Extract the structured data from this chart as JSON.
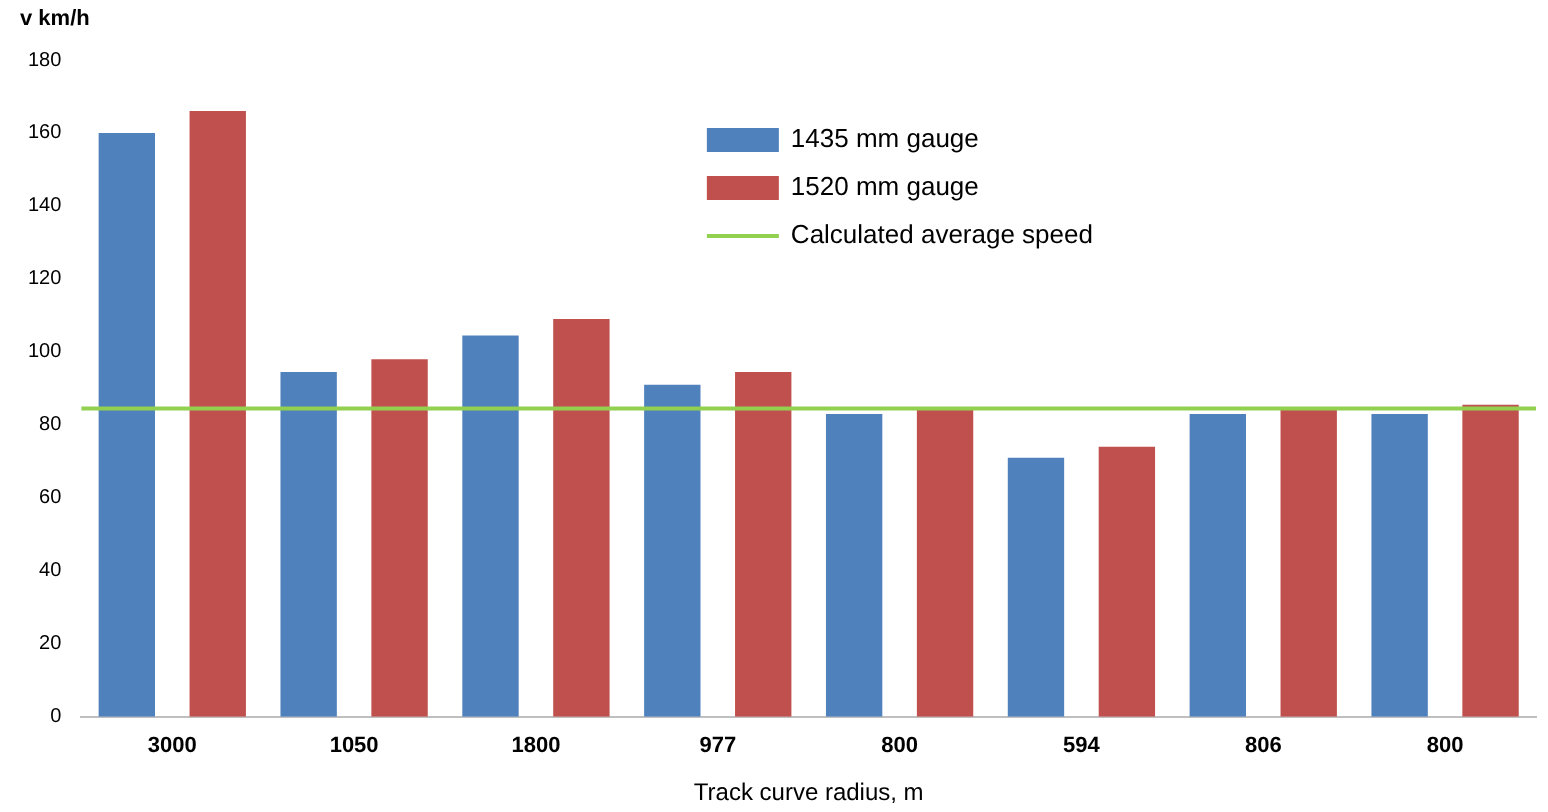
{
  "chart_data": {
    "type": "bar",
    "xlabel": "Track curve radius, m",
    "ylabel": "v km/h",
    "categories": [
      "3000",
      "1050",
      "1800",
      "977",
      "800",
      "594",
      "806",
      "800"
    ],
    "series": [
      {
        "name": "1435 mm gauge",
        "color": "#4f81bd",
        "values": [
          160,
          94.5,
          104.5,
          91,
          83,
          71,
          83,
          83
        ]
      },
      {
        "name": "1520 mm gauge",
        "color": "#c0504d",
        "values": [
          166,
          98,
          109,
          94.5,
          84.5,
          74,
          84.5,
          85.5
        ]
      }
    ],
    "ref_lines": [
      {
        "axis": "y",
        "value": 84.5,
        "label": "Calculated average speed",
        "color": "#92d050"
      }
    ],
    "ylim": [
      0,
      180
    ],
    "yticks": [
      0,
      20,
      40,
      60,
      80,
      100,
      120,
      140,
      160,
      180
    ],
    "grid": false,
    "legend": "top"
  }
}
